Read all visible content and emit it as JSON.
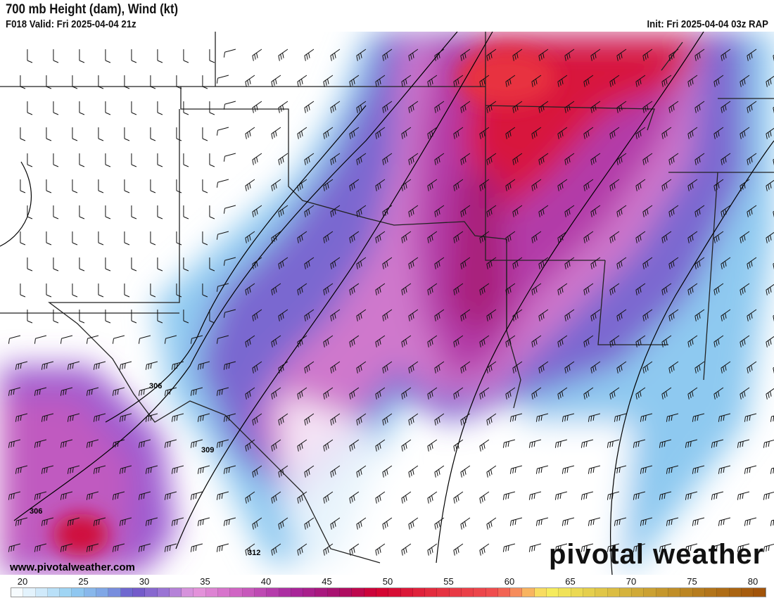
{
  "header": {
    "title": "700 mb Height (dam), Wind (kt)",
    "valid": "F018 Valid: Fri 2025-04-04 21z",
    "init": "Init: Fri 2025-04-04 03z RAP"
  },
  "watermark": {
    "site": "www.pivotalweather.com",
    "logo": "pivotal weather"
  },
  "contours": {
    "labels": [
      "306",
      "309",
      "312",
      "306"
    ]
  },
  "colorbar": {
    "labels": [
      "20",
      "25",
      "30",
      "35",
      "40",
      "45",
      "50",
      "55",
      "60",
      "65",
      "70",
      "75",
      "80"
    ],
    "min": 20,
    "max": 82,
    "stops": [
      [
        20,
        "#ffffff"
      ],
      [
        23,
        "#c6e6fa"
      ],
      [
        25,
        "#93cff2"
      ],
      [
        28,
        "#7c9fe4"
      ],
      [
        30,
        "#6a55c8"
      ],
      [
        33,
        "#a47ad6"
      ],
      [
        35,
        "#e69ade"
      ],
      [
        38,
        "#d46cc8"
      ],
      [
        43,
        "#a8289e"
      ],
      [
        47,
        "#a80f6a"
      ],
      [
        50,
        "#d20030"
      ],
      [
        55,
        "#e43040"
      ],
      [
        60,
        "#f05050"
      ],
      [
        62,
        "#f8a060"
      ],
      [
        64,
        "#f8f060"
      ],
      [
        70,
        "#d8b840"
      ],
      [
        76,
        "#b88020"
      ],
      [
        82,
        "#a05008"
      ]
    ]
  }
}
